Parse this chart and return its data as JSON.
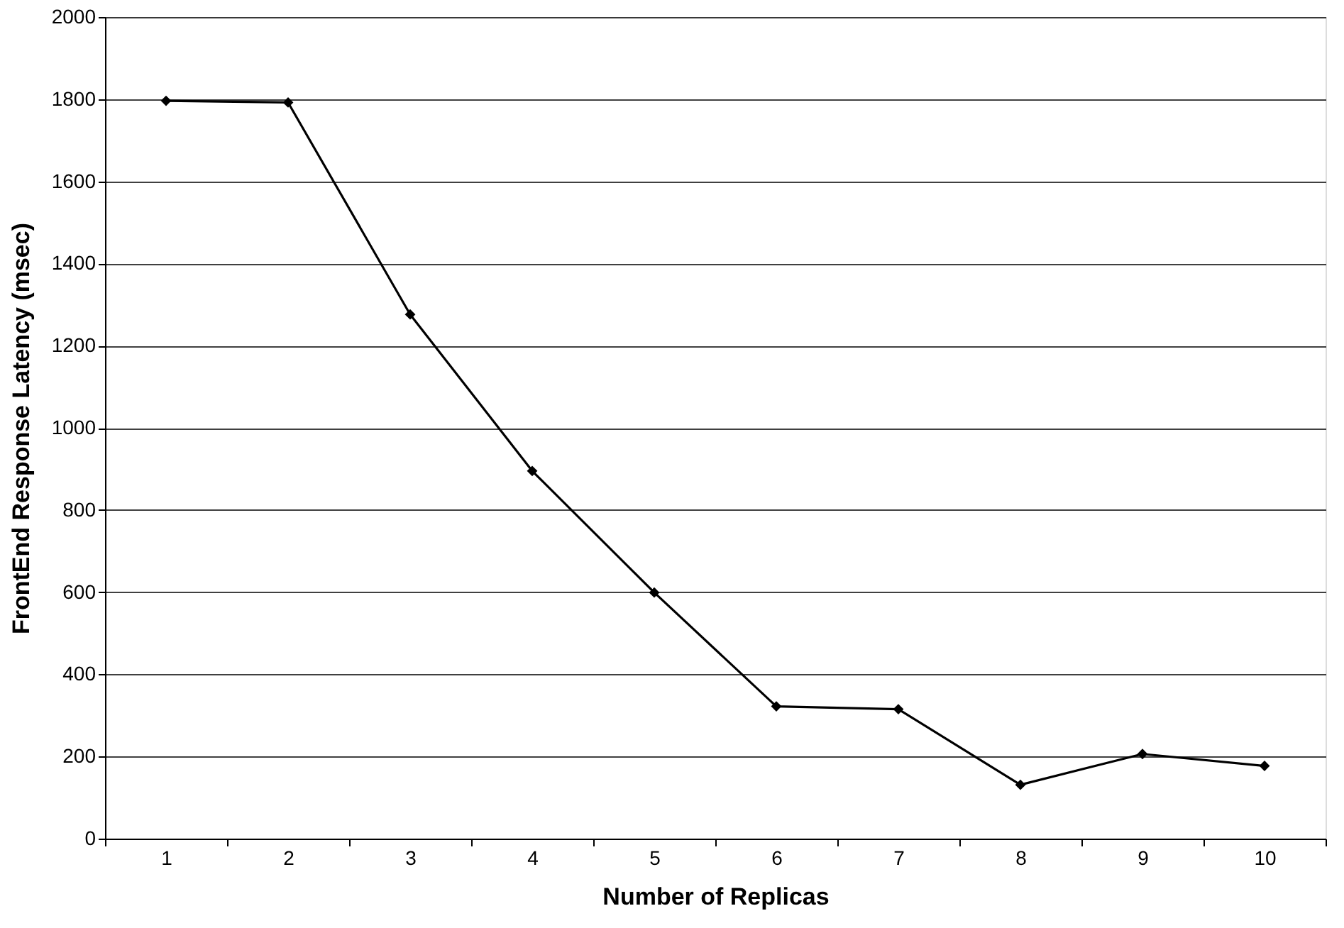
{
  "chart_data": {
    "type": "line",
    "xlabel": "Number of Replicas",
    "ylabel": "FrontEnd Response Latency (msec)",
    "categories": [
      "1",
      "2",
      "3",
      "4",
      "5",
      "6",
      "7",
      "8",
      "9",
      "10"
    ],
    "series": [
      {
        "color": "#000000",
        "values": [
          1796,
          1792,
          1276,
          895,
          599,
          322,
          315,
          131,
          206,
          177
        ]
      }
    ],
    "ylim": [
      0,
      2000
    ],
    "yticks": [
      0,
      200,
      400,
      600,
      800,
      1000,
      1200,
      1400,
      1600,
      1800,
      2000
    ],
    "grid": "y",
    "legend": false,
    "marker": "diamond",
    "line_style": "solid"
  }
}
